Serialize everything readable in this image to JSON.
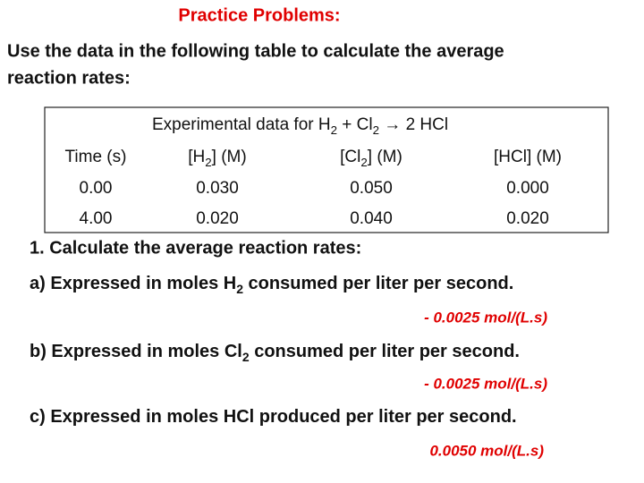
{
  "title": "Practice Problems:",
  "intro": [
    "Use the data in the following table to calculate the average",
    "reaction rates:"
  ],
  "table": {
    "caption": [
      "Experimental data for H",
      "2",
      " + Cl",
      "2",
      "  → 2 HCl"
    ],
    "header": [
      [
        "Time (s)"
      ],
      [
        "[H",
        "2",
        "] (M)"
      ],
      [
        "[Cl",
        "2",
        "] (M)"
      ],
      [
        "[HCl] (M)"
      ]
    ],
    "rows": [
      [
        "0.00",
        "0.030",
        "0.050",
        "0.000"
      ],
      [
        "4.00",
        "0.020",
        "0.040",
        "0.020"
      ]
    ]
  },
  "question": "1. Calculate the average reaction rates:",
  "parts": [
    {
      "text": [
        "a) Expressed in moles H",
        "2",
        " consumed per liter per second."
      ],
      "answer": "- 0.0025 mol/(L.s)"
    },
    {
      "text": [
        "b) Expressed in moles Cl",
        "2",
        " consumed per liter per second."
      ],
      "answer": "- 0.0025 mol/(L.s)"
    },
    {
      "text": [
        "c) Expressed in moles HCl produced per liter per second."
      ],
      "answer": "0.0050 mol/(L.s)"
    }
  ]
}
